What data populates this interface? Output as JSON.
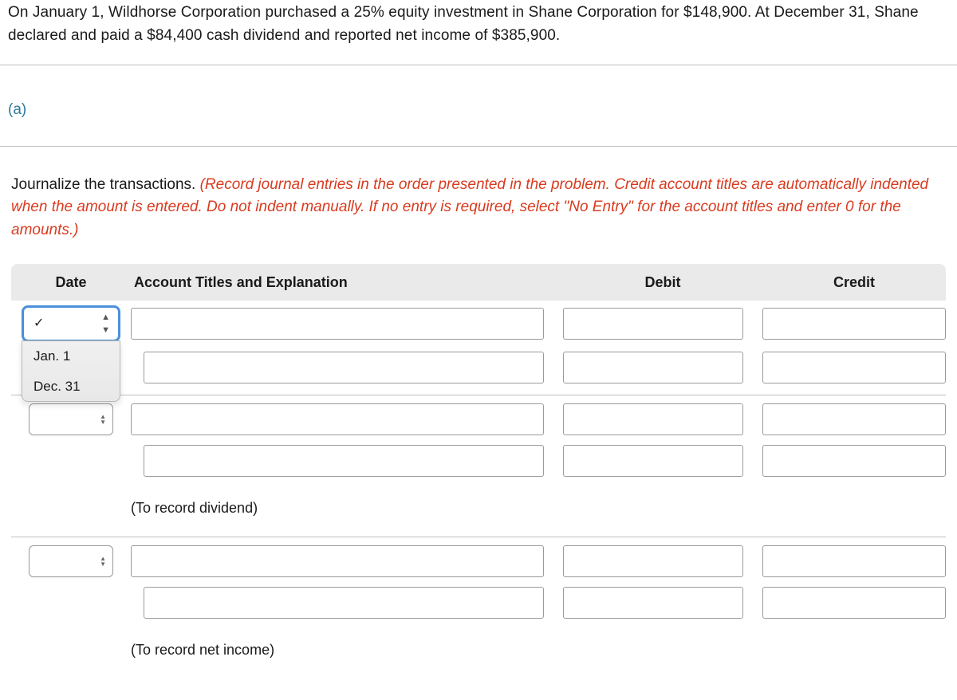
{
  "problem_text": "On January 1, Wildhorse Corporation purchased a 25% equity investment in Shane Corporation for $148,900. At December 31, Shane declared and paid a $84,400 cash dividend and reported net income of $385,900.",
  "section_letter": "(a)",
  "instructions_lead": "Journalize the transactions. ",
  "instructions_red": "(Record journal entries in the order presented in the problem. Credit account titles are automatically indented when the amount is entered. Do not indent manually. If no entry is required, select \"No Entry\" for the account titles and enter 0 for the amounts.)",
  "headers": {
    "date": "Date",
    "account": "Account Titles and Explanation",
    "debit": "Debit",
    "credit": "Credit"
  },
  "date_dropdown": {
    "selected_check": "✓",
    "options": [
      "Jan. 1",
      "Dec. 31"
    ]
  },
  "captions": {
    "dividend": "(To record dividend)",
    "netincome": "(To record net income)"
  },
  "colors": {
    "accent": "#2b7a9b",
    "warn": "#d93b1f",
    "header_bg": "#eaeaea",
    "border": "#bfbfbf",
    "focus": "#4a90d9"
  }
}
